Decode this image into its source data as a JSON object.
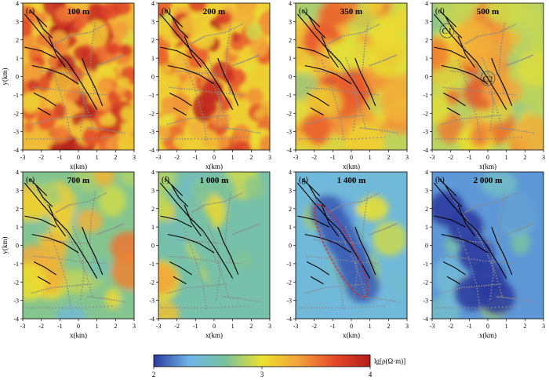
{
  "chart_data": {
    "type": "heatmap",
    "colormap": [
      "#2b3aa0",
      "#6fb7e8",
      "#79c29b",
      "#ece22f",
      "#f3a23a",
      "#e64a2a",
      "#b31d1d"
    ],
    "xlabel": "x(km)",
    "ylabel": "y(km)",
    "xlim": [
      -3,
      3
    ],
    "ylim": [
      -4,
      4
    ],
    "xticks": [
      "-3",
      "-2",
      "-1",
      "0",
      "1",
      "2",
      "3"
    ],
    "yticks": [
      "4",
      "3",
      "2",
      "1",
      "0",
      "-1",
      "-2",
      "-3",
      "-4"
    ],
    "panels": [
      {
        "label": "(a)",
        "depth": "100 m",
        "mean_lg_rho": 3.45
      },
      {
        "label": "(b)",
        "depth": "200 m",
        "mean_lg_rho": 3.35
      },
      {
        "label": "(c)",
        "depth": "350 m",
        "mean_lg_rho": 3.2
      },
      {
        "label": "(d)",
        "depth": "500 m",
        "mean_lg_rho": 3.1,
        "annotations": [
          "C1",
          "C2"
        ]
      },
      {
        "label": "(e)",
        "depth": "700 m",
        "mean_lg_rho": 2.95
      },
      {
        "label": "(f)",
        "depth": "1 000 m",
        "mean_lg_rho": 2.85
      },
      {
        "label": "(g)",
        "depth": "1 400 m",
        "mean_lg_rho": 2.65
      },
      {
        "label": "(h)",
        "depth": "2 000 m",
        "mean_lg_rho": 2.5
      }
    ],
    "colorbar": {
      "label": "lg[ρ(Ω·m)]",
      "range": [
        2,
        4
      ],
      "ticks": [
        "2",
        "3",
        "4"
      ]
    },
    "grid": false
  }
}
